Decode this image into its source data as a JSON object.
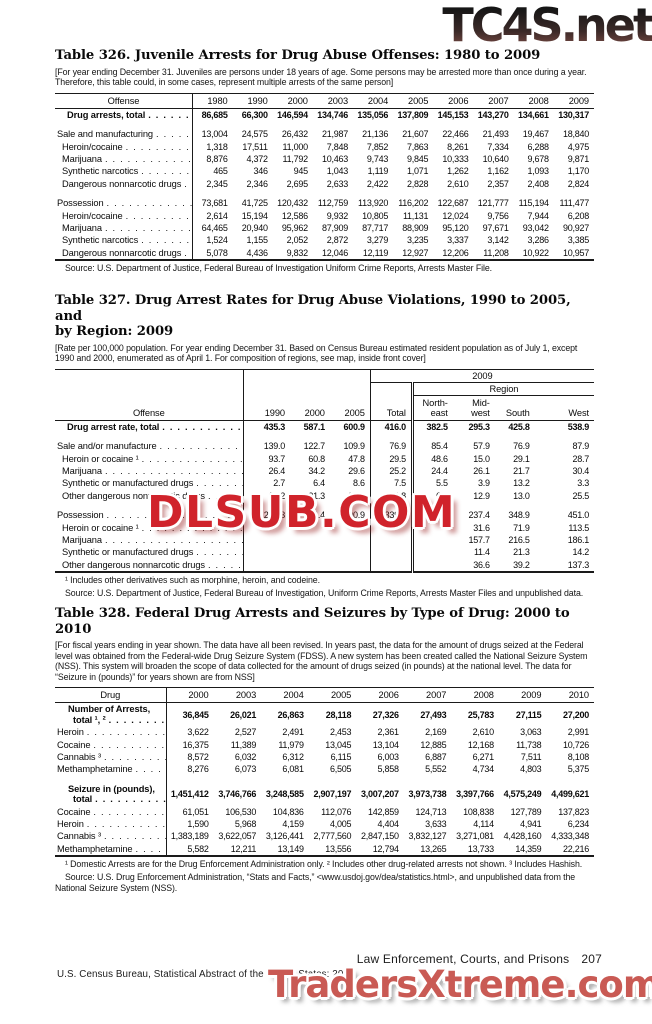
{
  "watermarks": {
    "top": "TC4S.net",
    "middle": "DLSUB.COM",
    "bottom": "TradersXtreme.com"
  },
  "page_footer": {
    "section": "Law Enforcement, Courts, and Prisons",
    "page_number": "207",
    "credit": "U.S. Census Bureau, Statistical Abstract of the United States: 2012"
  },
  "table326": {
    "title": "Table 326. Juvenile Arrests for Drug Abuse Offenses: 1980 to 2009",
    "note": "[For year ending December 31. Juveniles are persons under 18 years of age. Some persons may be arrested more than once during a year. Therefore, this table could, in some cases, represent multiple arrests of the same person]",
    "stub_header": "Offense",
    "years": [
      "1980",
      "1990",
      "2000",
      "2003",
      "2004",
      "2005",
      "2006",
      "2007",
      "2008",
      "2009"
    ],
    "rows": [
      {
        "label": "Drug arrests, total",
        "indent": 2,
        "bold": true,
        "values": [
          "86,685",
          "66,300",
          "146,594",
          "134,746",
          "135,056",
          "137,809",
          "145,153",
          "143,270",
          "134,661",
          "130,317"
        ]
      },
      {
        "label": "Sale and manufacturing",
        "indent": 0,
        "gap": true,
        "values": [
          "13,004",
          "24,575",
          "26,432",
          "21,987",
          "21,136",
          "21,607",
          "22,466",
          "21,493",
          "19,467",
          "18,840"
        ]
      },
      {
        "label": "Heroin/cocaine",
        "indent": 1,
        "values": [
          "1,318",
          "17,511",
          "11,000",
          "7,848",
          "7,852",
          "7,863",
          "8,261",
          "7,334",
          "6,288",
          "4,975"
        ]
      },
      {
        "label": "Marijuana",
        "indent": 1,
        "values": [
          "8,876",
          "4,372",
          "11,792",
          "10,463",
          "9,743",
          "9,845",
          "10,333",
          "10,640",
          "9,678",
          "9,871"
        ]
      },
      {
        "label": "Synthetic narcotics",
        "indent": 1,
        "values": [
          "465",
          "346",
          "945",
          "1,043",
          "1,119",
          "1,071",
          "1,262",
          "1,162",
          "1,093",
          "1,170"
        ]
      },
      {
        "label": "Dangerous nonnarcotic drugs",
        "indent": 1,
        "values": [
          "2,345",
          "2,346",
          "2,695",
          "2,633",
          "2,422",
          "2,828",
          "2,610",
          "2,357",
          "2,408",
          "2,824"
        ]
      },
      {
        "label": "Possession",
        "indent": 0,
        "gap": true,
        "values": [
          "73,681",
          "41,725",
          "120,432",
          "112,759",
          "113,920",
          "116,202",
          "122,687",
          "121,777",
          "115,194",
          "111,477"
        ]
      },
      {
        "label": "Heroin/cocaine",
        "indent": 1,
        "values": [
          "2,614",
          "15,194",
          "12,586",
          "9,932",
          "10,805",
          "11,131",
          "12,024",
          "9,756",
          "7,944",
          "6,208"
        ]
      },
      {
        "label": "Marijuana",
        "indent": 1,
        "values": [
          "64,465",
          "20,940",
          "95,962",
          "87,909",
          "87,717",
          "88,909",
          "95,120",
          "97,671",
          "93,042",
          "90,927"
        ]
      },
      {
        "label": "Synthetic narcotics",
        "indent": 1,
        "values": [
          "1,524",
          "1,155",
          "2,052",
          "2,872",
          "3,279",
          "3,235",
          "3,337",
          "3,142",
          "3,286",
          "3,385"
        ]
      },
      {
        "label": "Dangerous nonnarcotic drugs",
        "indent": 1,
        "values": [
          "5,078",
          "4,436",
          "9,832",
          "12,046",
          "12,119",
          "12,927",
          "12,206",
          "11,208",
          "10,922",
          "10,957"
        ]
      }
    ],
    "source": "Source: U.S. Department of Justice, Federal Bureau of Investigation Uniform Crime Reports, Arrests Master File."
  },
  "table327": {
    "title_line1": "Table 327. Drug Arrest Rates for Drug Abuse Violations, 1990 to 2005, and",
    "title_line2": "by Region: 2009",
    "note": "[Rate per 100,000 population. For year ending December 31. Based on Census Bureau estimated resident population as of July 1, except 1990 and 2000, enumerated as of April 1. For composition of regions, see map, inside front cover]",
    "header": {
      "stub": "Offense",
      "span2009": "2009",
      "region": "Region",
      "y1990": "1990",
      "y2000": "2000",
      "y2005": "2005",
      "total": "Total",
      "northeast": "North-\neast",
      "midwest": "Mid-\nwest",
      "south": "South",
      "west": "West"
    },
    "rows": [
      {
        "label": "Drug arrest rate, total",
        "indent": 2,
        "bold": true,
        "values": [
          "435.3",
          "587.1",
          "600.9",
          "416.0",
          "382.5",
          "295.3",
          "425.8",
          "538.9"
        ]
      },
      {
        "label": "Sale and/or manufacture",
        "indent": 0,
        "gap": true,
        "values": [
          "139.0",
          "122.7",
          "109.9",
          "76.9",
          "85.4",
          "57.9",
          "76.9",
          "87.9"
        ]
      },
      {
        "label": "Heroin or cocaine ¹",
        "indent": 1,
        "values": [
          "93.7",
          "60.8",
          "47.8",
          "29.5",
          "48.6",
          "15.0",
          "29.1",
          "28.7"
        ]
      },
      {
        "label": "Marijuana",
        "indent": 1,
        "values": [
          "26.4",
          "34.2",
          "29.6",
          "25.2",
          "24.4",
          "26.1",
          "21.7",
          "30.4"
        ]
      },
      {
        "label": "Synthetic or manufactured drugs",
        "indent": 1,
        "values": [
          "2.7",
          "6.4",
          "8.6",
          "7.5",
          "5.5",
          "3.9",
          "13.2",
          "3.3"
        ]
      },
      {
        "label": "Other dangerous nonnarcotic drugs",
        "indent": 1,
        "values": [
          "16.2",
          "21.3",
          "23.9",
          "14.8",
          "6.9",
          "12.9",
          "13.0",
          "25.5"
        ]
      },
      {
        "label": "Possession",
        "indent": 0,
        "gap": true,
        "values": [
          "296.3",
          "464.4",
          "490.9",
          "339.1",
          "297.1",
          "237.4",
          "348.9",
          "451.0"
        ]
      },
      {
        "label": "Heroin or cocaine ¹",
        "indent": 1,
        "values": [
          "",
          "",
          "",
          "",
          "",
          "31.6",
          "71.9",
          "113.5"
        ]
      },
      {
        "label": "Marijuana",
        "indent": 1,
        "values": [
          "",
          "",
          "",
          "",
          "",
          "157.7",
          "216.5",
          "186.1"
        ]
      },
      {
        "label": "Synthetic or manufactured drugs",
        "indent": 1,
        "values": [
          "",
          "",
          "",
          "",
          "",
          "11.4",
          "21.3",
          "14.2"
        ]
      },
      {
        "label": "Other dangerous nonnarcotic drugs",
        "indent": 1,
        "values": [
          "",
          "",
          "",
          "",
          "",
          "36.6",
          "39.2",
          "137.3"
        ]
      }
    ],
    "footnote": "¹ Includes other derivatives such as morphine, heroin, and codeine.",
    "source": "Source: U.S. Department of Justice, Federal Bureau of Investigation, Uniform Crime Reports, Arrests Master Files and unpublished data."
  },
  "table328": {
    "title": "Table 328. Federal Drug Arrests and Seizures by Type of Drug: 2000 to 2010",
    "note": "[For fiscal years ending in year shown. The data have all been revised. In years past, the data for the amount of drugs seized at the Federal level was obtained from the Federal-wide Drug Seizure System (FDSS). A new system has been created called the National Seizure System (NSS). This system will broaden the scope of data collected for the amount of drugs seized (in pounds) at the national level. The data for “Seizure in (pounds)” for years shown are from NSS]",
    "stub_header": "Drug",
    "years": [
      "2000",
      "2003",
      "2004",
      "2005",
      "2006",
      "2007",
      "2008",
      "2009",
      "2010"
    ],
    "rows": [
      {
        "top": "Number of Arrests,",
        "label": "total ¹, ²",
        "indent": 3,
        "bold": true,
        "values": [
          "36,845",
          "26,021",
          "26,863",
          "28,118",
          "27,326",
          "27,493",
          "25,783",
          "27,115",
          "27,200"
        ]
      },
      {
        "label": "Heroin",
        "indent": 0,
        "values": [
          "3,622",
          "2,527",
          "2,491",
          "2,453",
          "2,361",
          "2,169",
          "2,610",
          "3,063",
          "2,991"
        ]
      },
      {
        "label": "Cocaine",
        "indent": 0,
        "values": [
          "16,375",
          "11,389",
          "11,979",
          "13,045",
          "13,104",
          "12,885",
          "12,168",
          "11,738",
          "10,726"
        ]
      },
      {
        "label": "Cannabis ³",
        "indent": 0,
        "values": [
          "8,572",
          "6,032",
          "6,312",
          "6,115",
          "6,003",
          "6,887",
          "6,271",
          "7,511",
          "8,108"
        ]
      },
      {
        "label": "Methamphetamine",
        "indent": 0,
        "values": [
          "8,276",
          "6,073",
          "6,081",
          "6,505",
          "5,858",
          "5,552",
          "4,734",
          "4,803",
          "5,375"
        ]
      },
      {
        "top": "Seizure in (pounds),",
        "label": "total",
        "indent": 3,
        "bold": true,
        "gap": true,
        "values": [
          "1,451,412",
          "3,746,766",
          "3,248,585",
          "2,907,197",
          "3,007,207",
          "3,973,738",
          "3,397,766",
          "4,575,249",
          "4,499,621"
        ]
      },
      {
        "label": "Cocaine",
        "indent": 0,
        "values": [
          "61,051",
          "106,530",
          "104,836",
          "112,076",
          "142,859",
          "124,713",
          "108,838",
          "127,789",
          "137,823"
        ]
      },
      {
        "label": "Heroin",
        "indent": 0,
        "values": [
          "1,590",
          "5,968",
          "4,159",
          "4,005",
          "4,404",
          "3,633",
          "4,114",
          "4,941",
          "6,234"
        ]
      },
      {
        "label": "Cannabis ³",
        "indent": 0,
        "values": [
          "1,383,189",
          "3,622,057",
          "3,126,441",
          "2,777,560",
          "2,847,150",
          "3,832,127",
          "3,271,081",
          "4,428,160",
          "4,333,348"
        ]
      },
      {
        "label": "Methamphetamine",
        "indent": 0,
        "values": [
          "5,582",
          "12,211",
          "13,149",
          "13,556",
          "12,794",
          "13,265",
          "13,733",
          "14,359",
          "22,216"
        ]
      }
    ],
    "footnote": "¹ Domestic Arrests are for the Drug Enforcement Administration only. ² Includes other drug-related arrests not shown. ³ Includes Hashish.",
    "source": "Source: U.S. Drug Enforcement Administration, “Stats and Facts,” <www.usdoj.gov/dea/statistics.html>, and unpublished data from the National Seizure System (NSS)."
  }
}
